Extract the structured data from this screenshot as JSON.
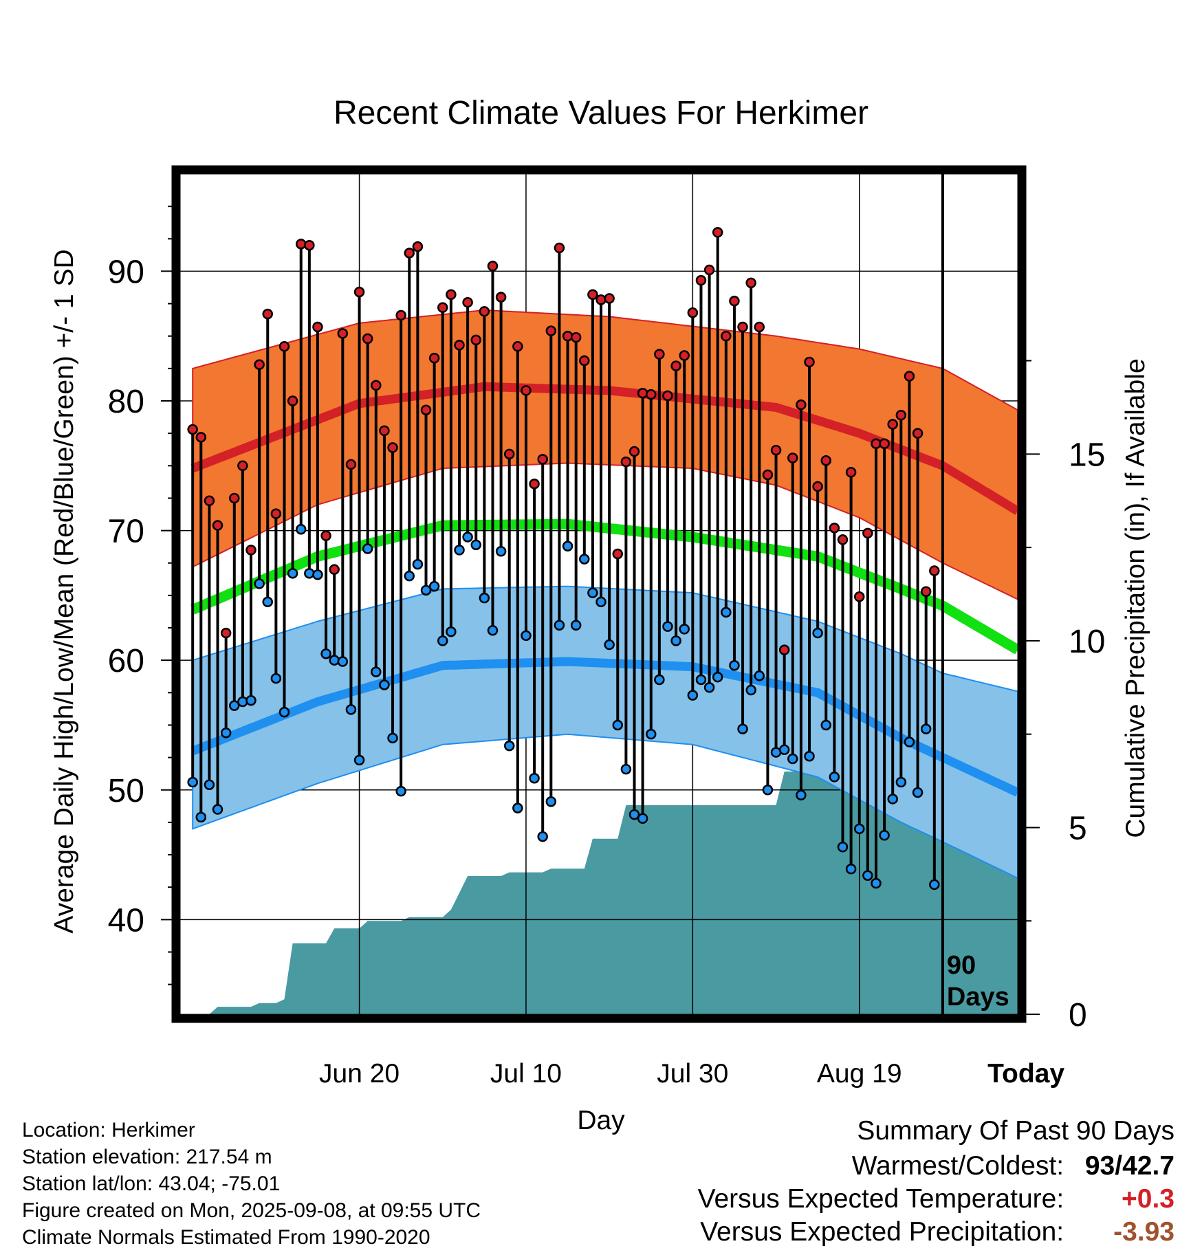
{
  "title": "Recent Climate Values For Herkimer",
  "chart_data": {
    "type": "line",
    "title": "Recent Climate Values For Herkimer",
    "xlabel": "Day",
    "ylabel": "Average Daily High/Low/Mean (Red/Blue/Green) +/- 1 SD",
    "y2label": "Cumulative Precipitation (in), If Available",
    "x_ticks": [
      "Jun 20",
      "Jul 10",
      "Jul 30",
      "Aug 19",
      "Today"
    ],
    "y_ticks": [
      "40",
      "50",
      "60",
      "70",
      "80",
      "90"
    ],
    "y2_ticks": [
      "0",
      "5",
      "10",
      "15"
    ],
    "ylim": [
      32.7,
      97.5
    ],
    "y2lim": [
      0,
      22.5
    ],
    "xlim_days": [
      -91.5,
      9
    ],
    "marker_label": [
      "90",
      "Days"
    ],
    "normal_high": [
      [
        -90,
        74.8
      ],
      [
        -70,
        79.8
      ],
      [
        -55,
        81.1
      ],
      [
        -40,
        80.8
      ],
      [
        -20,
        79.5
      ],
      [
        -10,
        77.5
      ],
      [
        0,
        75.0
      ],
      [
        9,
        71.5
      ]
    ],
    "normal_high_upper": [
      [
        -90,
        82.5
      ],
      [
        -70,
        86.0
      ],
      [
        -55,
        87.0
      ],
      [
        -40,
        86.5
      ],
      [
        -20,
        85.0
      ],
      [
        -10,
        84.0
      ],
      [
        0,
        82.5
      ],
      [
        9,
        79.3
      ]
    ],
    "normal_high_lower": [
      [
        -90,
        67.2
      ],
      [
        -75,
        72.0
      ],
      [
        -60,
        74.8
      ],
      [
        -45,
        75.2
      ],
      [
        -30,
        74.8
      ],
      [
        -20,
        73.5
      ],
      [
        -10,
        71.0
      ],
      [
        0,
        67.5
      ],
      [
        9,
        64.7
      ]
    ],
    "normal_mean": [
      [
        -90,
        63.9
      ],
      [
        -75,
        68.0
      ],
      [
        -60,
        70.4
      ],
      [
        -45,
        70.5
      ],
      [
        -30,
        69.5
      ],
      [
        -15,
        68.0
      ],
      [
        -5,
        65.5
      ],
      [
        0,
        64.2
      ],
      [
        9,
        60.8
      ]
    ],
    "normal_low": [
      [
        -90,
        53.0
      ],
      [
        -75,
        56.8
      ],
      [
        -60,
        59.6
      ],
      [
        -45,
        59.9
      ],
      [
        -30,
        59.5
      ],
      [
        -15,
        57.5
      ],
      [
        -5,
        54.0
      ],
      [
        0,
        52.5
      ],
      [
        9,
        49.8
      ]
    ],
    "normal_low_upper": [
      [
        -90,
        60.0
      ],
      [
        -75,
        63.0
      ],
      [
        -60,
        65.5
      ],
      [
        -45,
        65.7
      ],
      [
        -30,
        65.2
      ],
      [
        -15,
        63.0
      ],
      [
        -5,
        60.5
      ],
      [
        0,
        59.0
      ],
      [
        9,
        57.6
      ]
    ],
    "normal_low_lower": [
      [
        -90,
        47.0
      ],
      [
        -75,
        50.5
      ],
      [
        -60,
        53.5
      ],
      [
        -45,
        54.3
      ],
      [
        -30,
        53.5
      ],
      [
        -15,
        51.0
      ],
      [
        -5,
        47.5
      ],
      [
        0,
        46.0
      ],
      [
        9,
        43.2
      ]
    ],
    "daily": [
      [
        -90,
        77.8,
        50.6
      ],
      [
        -89,
        77.2,
        47.9
      ],
      [
        -88,
        72.3,
        50.4
      ],
      [
        -87,
        70.4,
        48.5
      ],
      [
        -86,
        62.1,
        54.4
      ],
      [
        -85,
        72.5,
        56.5
      ],
      [
        -84,
        75.0,
        56.8
      ],
      [
        -83,
        68.5,
        56.9
      ],
      [
        -82,
        82.8,
        65.9
      ],
      [
        -81,
        86.7,
        64.5
      ],
      [
        -80,
        71.3,
        58.6
      ],
      [
        -79,
        84.2,
        56.0
      ],
      [
        -78,
        80.0,
        66.7
      ],
      [
        -77,
        92.1,
        70.1
      ],
      [
        -76,
        92.0,
        66.7
      ],
      [
        -75,
        85.7,
        66.6
      ],
      [
        -74,
        69.6,
        60.5
      ],
      [
        -73,
        67.0,
        60.0
      ],
      [
        -72,
        85.2,
        59.9
      ],
      [
        -71,
        75.1,
        56.2
      ],
      [
        -70,
        88.4,
        52.3
      ],
      [
        -69,
        84.8,
        68.6
      ],
      [
        -68,
        81.2,
        59.1
      ],
      [
        -67,
        77.7,
        58.1
      ],
      [
        -66,
        76.4,
        54.0
      ],
      [
        -65,
        86.6,
        49.9
      ],
      [
        -64,
        91.4,
        66.5
      ],
      [
        -63,
        91.9,
        67.4
      ],
      [
        -62,
        79.3,
        65.4
      ],
      [
        -61,
        83.3,
        65.7
      ],
      [
        -60,
        87.2,
        61.5
      ],
      [
        -59,
        88.2,
        62.2
      ],
      [
        -58,
        84.3,
        68.5
      ],
      [
        -57,
        87.6,
        69.5
      ],
      [
        -56,
        84.7,
        68.9
      ],
      [
        -55,
        86.9,
        64.8
      ],
      [
        -54,
        90.4,
        62.3
      ],
      [
        -53,
        88.0,
        68.4
      ],
      [
        -52,
        75.9,
        53.4
      ],
      [
        -51,
        84.2,
        48.6
      ],
      [
        -50,
        80.8,
        61.9
      ],
      [
        -49,
        73.6,
        50.9
      ],
      [
        -48,
        75.5,
        46.4
      ],
      [
        -47,
        85.4,
        49.1
      ],
      [
        -46,
        91.8,
        62.7
      ],
      [
        -45,
        85.0,
        68.8
      ],
      [
        -44,
        84.9,
        62.7
      ],
      [
        -43,
        83.1,
        67.8
      ],
      [
        -42,
        88.2,
        65.2
      ],
      [
        -41,
        87.8,
        64.5
      ],
      [
        -40,
        87.9,
        61.2
      ],
      [
        -39,
        68.2,
        55.0
      ],
      [
        -38,
        75.3,
        51.6
      ],
      [
        -37,
        76.1,
        48.1
      ],
      [
        -36,
        80.6,
        47.8
      ],
      [
        -35,
        80.5,
        54.3
      ],
      [
        -34,
        83.6,
        58.5
      ],
      [
        -33,
        80.4,
        62.6
      ],
      [
        -32,
        82.7,
        61.5
      ],
      [
        -31,
        83.5,
        62.4
      ],
      [
        -30,
        86.8,
        57.3
      ],
      [
        -29,
        89.3,
        58.5
      ],
      [
        -28,
        90.1,
        57.9
      ],
      [
        -27,
        93.0,
        58.7
      ],
      [
        -26,
        85.0,
        63.7
      ],
      [
        -25,
        87.7,
        59.6
      ],
      [
        -24,
        85.7,
        54.7
      ],
      [
        -23,
        89.1,
        57.7
      ],
      [
        -22,
        85.7,
        58.8
      ],
      [
        -21,
        74.3,
        50.0
      ],
      [
        -20,
        76.2,
        52.9
      ],
      [
        -19,
        60.8,
        53.1
      ],
      [
        -18,
        75.6,
        52.4
      ],
      [
        -17,
        79.7,
        49.6
      ],
      [
        -16,
        83.0,
        52.6
      ],
      [
        -15,
        73.4,
        62.1
      ],
      [
        -14,
        75.4,
        55.0
      ],
      [
        -13,
        70.2,
        51.0
      ],
      [
        -12,
        69.3,
        45.6
      ],
      [
        -11,
        74.5,
        43.9
      ],
      [
        -10,
        64.9,
        47.0
      ],
      [
        -9,
        69.8,
        43.4
      ],
      [
        -8,
        76.7,
        42.8
      ],
      [
        -7,
        76.7,
        46.5
      ],
      [
        -6,
        78.2,
        49.3
      ],
      [
        -5,
        78.9,
        50.6
      ],
      [
        -4,
        81.9,
        53.7
      ],
      [
        -3,
        77.5,
        49.8
      ],
      [
        -2,
        65.3,
        54.7
      ],
      [
        -1,
        66.9,
        42.7
      ]
    ],
    "precip_cumulative": [
      [
        -90,
        0.0
      ],
      [
        -88,
        0.0
      ],
      [
        -87,
        0.2
      ],
      [
        -83,
        0.2
      ],
      [
        -82,
        0.3
      ],
      [
        -80,
        0.3
      ],
      [
        -79,
        0.4
      ],
      [
        -78,
        1.9
      ],
      [
        -74,
        1.9
      ],
      [
        -73,
        2.3
      ],
      [
        -70,
        2.3
      ],
      [
        -69,
        2.5
      ],
      [
        -65,
        2.5
      ],
      [
        -64,
        2.6
      ],
      [
        -60,
        2.6
      ],
      [
        -59,
        2.8
      ],
      [
        -57,
        3.7
      ],
      [
        -53,
        3.7
      ],
      [
        -52,
        3.8
      ],
      [
        -48,
        3.8
      ],
      [
        -47,
        3.9
      ],
      [
        -43,
        3.9
      ],
      [
        -42,
        4.7
      ],
      [
        -39,
        4.7
      ],
      [
        -38,
        5.6
      ],
      [
        -20,
        5.6
      ],
      [
        -19,
        6.5
      ],
      [
        -16,
        6.5
      ],
      [
        -15,
        7.1
      ],
      [
        -12,
        7.1
      ],
      [
        -11,
        7.3
      ],
      [
        -8,
        7.3
      ],
      [
        -7,
        7.6
      ],
      [
        -3,
        7.6
      ],
      [
        -2,
        8.1
      ],
      [
        -1,
        8.2
      ],
      [
        9,
        8.2
      ]
    ]
  },
  "info": {
    "location": "Location: Herkimer",
    "elevation": "Station elevation: 217.54 m",
    "latlon": "Station lat/lon: 43.04; -75.01",
    "created": "Figure created on Mon, 2025-09-08, at 09:55 UTC",
    "normals": "Climate Normals Estimated From 1990-2020"
  },
  "summary": {
    "heading": "Summary Of Past 90 Days",
    "warm_cold_label": "Warmest/Coldest:",
    "warmest": "93",
    "separator": "/",
    "coldest": "42.7",
    "temp_label": "Versus Expected Temperature:",
    "temp_value": "+0.3",
    "precip_label": "Versus Expected Precipitation:",
    "precip_value": "-3.93"
  },
  "colors": {
    "high_band": "#f27730",
    "high_line": "#d42027",
    "low_band": "#85c1e9",
    "low_line": "#1f8ff0",
    "mean_line": "#11e011",
    "precip_fill": "#4a9aa2",
    "high_dot": "#d42027",
    "low_dot": "#1f8ff0",
    "temp_anomaly": "#d42027",
    "precip_anomaly": "#a0522d"
  }
}
